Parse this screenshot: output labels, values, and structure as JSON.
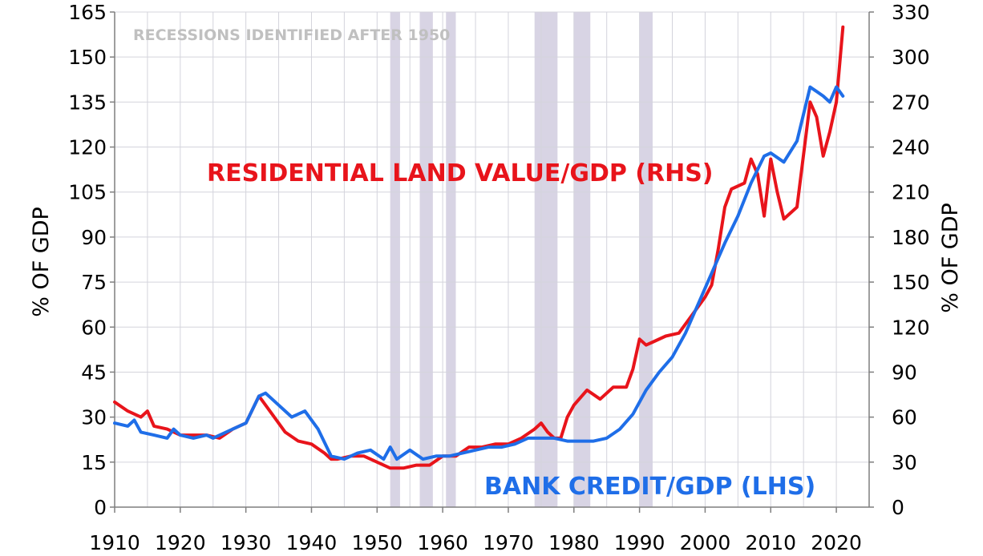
{
  "chart_data": {
    "type": "line",
    "title": "",
    "annotation": "RECESSIONS IDENTIFIED AFTER 1950",
    "ylabel_left": "% OF GDP",
    "ylabel_right": "% OF GDP",
    "xlim": [
      1910,
      2025
    ],
    "ylim_left": [
      0,
      165
    ],
    "ylim_right": [
      0,
      330
    ],
    "x_ticks": [
      "1910",
      "1920",
      "1930",
      "1940",
      "1950",
      "1960",
      "1970",
      "1980",
      "1990",
      "2000",
      "2010",
      "2020"
    ],
    "y_ticks_left": [
      "0",
      "15",
      "30",
      "45",
      "60",
      "75",
      "90",
      "105",
      "120",
      "135",
      "150",
      "165"
    ],
    "y_ticks_right": [
      "0",
      "30",
      "60",
      "90",
      "120",
      "150",
      "180",
      "210",
      "240",
      "270",
      "300",
      "330"
    ],
    "grid": true,
    "recessions": [
      [
        1952,
        1953.5
      ],
      [
        1956.5,
        1958.5
      ],
      [
        1960.5,
        1962
      ],
      [
        1974,
        1977.5
      ],
      [
        1980,
        1982.5
      ],
      [
        1990,
        1992
      ]
    ],
    "colors": {
      "land": "#e8141b",
      "credit": "#1f6ee8",
      "recession": "#d8d4e4",
      "grid": "#d4d4dc",
      "axis": "#7f7f7f",
      "annotation": "#c0c0c0"
    },
    "series": [
      {
        "name": "RESIDENTIAL LAND VALUE/GDP (RHS)",
        "axis": "right",
        "color": "#e8141b",
        "x": [
          1910,
          1912,
          1914,
          1915,
          1916,
          1918,
          1920,
          1922,
          1924,
          1926,
          1928,
          1930,
          1932,
          1934,
          1936,
          1938,
          1940,
          1942,
          1943,
          1944,
          1946,
          1948,
          1950,
          1952,
          1954,
          1956,
          1958,
          1960,
          1962,
          1964,
          1966,
          1968,
          1970,
          1972,
          1974,
          1975,
          1976,
          1977,
          1978,
          1979,
          1980,
          1982,
          1984,
          1986,
          1988,
          1989,
          1990,
          1991,
          1992,
          1994,
          1996,
          1998,
          2000,
          2001,
          2002,
          2003,
          2004,
          2006,
          2007,
          2008,
          2009,
          2010,
          2011,
          2012,
          2014,
          2016,
          2017,
          2018,
          2019,
          2020,
          2021
        ],
        "values": [
          70,
          64,
          60,
          64,
          54,
          52,
          48,
          48,
          48,
          46,
          52,
          56,
          74,
          62,
          50,
          44,
          42,
          36,
          32,
          32,
          34,
          34,
          30,
          26,
          26,
          28,
          28,
          34,
          34,
          40,
          40,
          42,
          42,
          46,
          52,
          56,
          50,
          46,
          46,
          60,
          68,
          78,
          72,
          80,
          80,
          92,
          112,
          108,
          110,
          114,
          116,
          128,
          140,
          148,
          172,
          200,
          212,
          216,
          232,
          222,
          194,
          232,
          210,
          192,
          200,
          270,
          260,
          234,
          250,
          270,
          320
        ]
      },
      {
        "name": "BANK CREDIT/GDP (LHS)",
        "axis": "left",
        "color": "#1f6ee8",
        "x": [
          1910,
          1912,
          1913,
          1914,
          1916,
          1918,
          1919,
          1920,
          1922,
          1924,
          1925,
          1928,
          1930,
          1932,
          1933,
          1935,
          1937,
          1939,
          1941,
          1943,
          1945,
          1947,
          1949,
          1951,
          1952,
          1953,
          1955,
          1957,
          1959,
          1961,
          1963,
          1965,
          1967,
          1969,
          1971,
          1973,
          1975,
          1977,
          1979,
          1981,
          1983,
          1985,
          1987,
          1989,
          1991,
          1993,
          1995,
          1997,
          1999,
          2001,
          2003,
          2005,
          2007,
          2009,
          2010,
          2012,
          2014,
          2016,
          2018,
          2019,
          2020,
          2021
        ],
        "values": [
          28,
          27,
          29,
          25,
          24,
          23,
          26,
          24,
          23,
          24,
          23,
          26,
          28,
          37,
          38,
          34,
          30,
          32,
          26,
          17,
          16,
          18,
          19,
          16,
          20,
          16,
          19,
          16,
          17,
          17,
          18,
          19,
          20,
          20,
          21,
          23,
          23,
          23,
          22,
          22,
          22,
          23,
          26,
          31,
          39,
          45,
          50,
          58,
          68,
          78,
          88,
          97,
          108,
          117,
          118,
          115,
          122,
          140,
          137,
          135,
          140,
          137
        ]
      }
    ]
  }
}
